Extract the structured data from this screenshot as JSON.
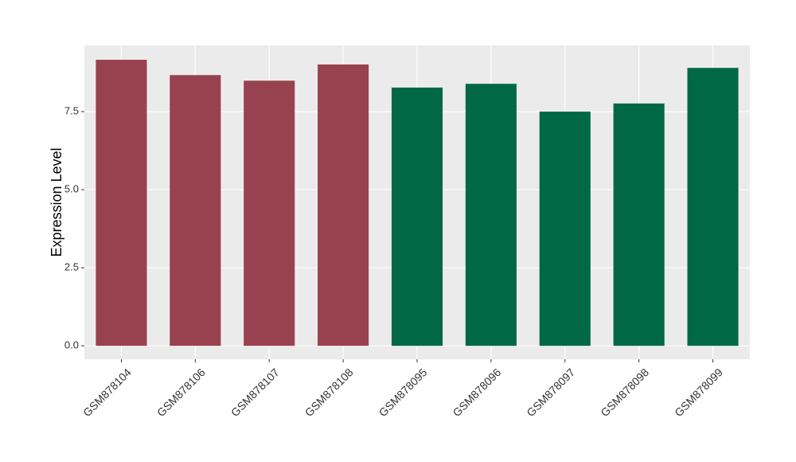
{
  "chart_data": {
    "type": "bar",
    "y_label": "Expression Level",
    "categories": [
      "GSM878104",
      "GSM878106",
      "GSM878107",
      "GSM878108",
      "GSM878095",
      "GSM878096",
      "GSM878097",
      "GSM878098",
      "GSM878099"
    ],
    "values": [
      9.16,
      8.67,
      8.49,
      9.01,
      8.27,
      8.39,
      7.5,
      7.76,
      8.9
    ],
    "colors": [
      "#99424f",
      "#99424f",
      "#99424f",
      "#99424f",
      "#006845",
      "#006845",
      "#006845",
      "#006845",
      "#006845"
    ],
    "ylim": [
      -0.43,
      9.62
    ],
    "yticks": [
      {
        "value": 0,
        "label": "0.0"
      },
      2.5,
      {
        "value": 5,
        "label": "5.0"
      },
      7.5
    ],
    "grid": true
  }
}
